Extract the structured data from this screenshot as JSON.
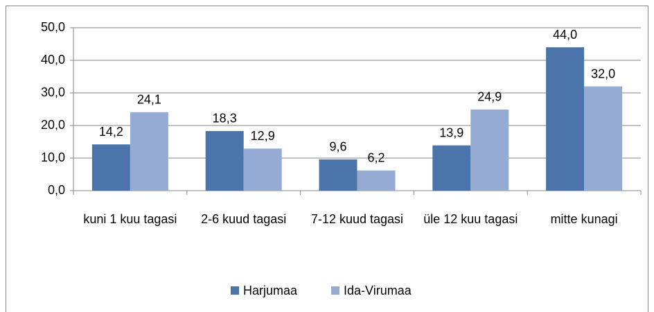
{
  "chart_data": {
    "type": "bar",
    "categories": [
      "kuni 1 kuu tagasi",
      "2-6 kuud tagasi",
      "7-12 kuud tagasi",
      "üle 12 kuu tagasi",
      "mitte  kunagi"
    ],
    "series": [
      {
        "name": "Harjumaa",
        "color": "#4a74aa",
        "values": [
          14.2,
          18.3,
          9.6,
          13.9,
          44.0
        ],
        "value_labels": [
          "14,2",
          "18,3",
          "9,6",
          "13,9",
          "44,0"
        ]
      },
      {
        "name": "Ida-Virumaa",
        "color": "#95abd4",
        "values": [
          24.1,
          12.9,
          6.2,
          24.9,
          32.0
        ],
        "value_labels": [
          "24,1",
          "12,9",
          "6,2",
          "24,9",
          "32,0"
        ]
      }
    ],
    "ylim": [
      0,
      50
    ],
    "yticks": [
      {
        "value": 0,
        "label": "0,0"
      },
      {
        "value": 10,
        "label": "10,0"
      },
      {
        "value": 20,
        "label": "20,0"
      },
      {
        "value": 30,
        "label": "30,0"
      },
      {
        "value": 40,
        "label": "40,0"
      },
      {
        "value": 50,
        "label": "50,0"
      }
    ],
    "grid": true,
    "legend": "bottom"
  }
}
